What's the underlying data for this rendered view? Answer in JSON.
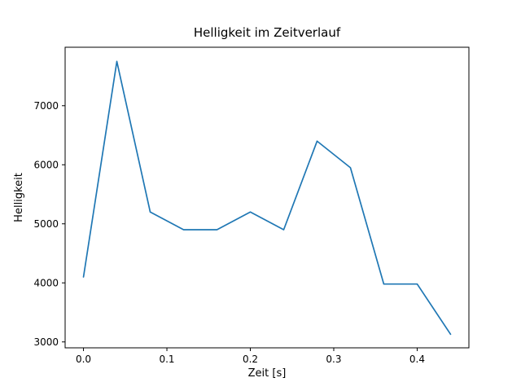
{
  "figure": {
    "background": "#ffffff"
  },
  "chart_data": {
    "type": "line",
    "title": "Helligkeit im Zeitverlauf",
    "xlabel": "Zeit [s]",
    "ylabel": "Helligkeit",
    "x": [
      0.0,
      0.04,
      0.08,
      0.12,
      0.16,
      0.2,
      0.24,
      0.28,
      0.32,
      0.36,
      0.4,
      0.44
    ],
    "y": [
      4100,
      7750,
      5200,
      4900,
      4900,
      5200,
      4900,
      6400,
      5950,
      3980,
      3980,
      3130
    ],
    "xlim": [
      -0.022,
      0.462
    ],
    "ylim": [
      2900,
      7990
    ],
    "xticks": [
      0.0,
      0.1,
      0.2,
      0.3,
      0.4
    ],
    "xtick_labels": [
      "0.0",
      "0.1",
      "0.2",
      "0.3",
      "0.4"
    ],
    "yticks": [
      3000,
      4000,
      5000,
      6000,
      7000
    ],
    "ytick_labels": [
      "3000",
      "4000",
      "5000",
      "6000",
      "7000"
    ],
    "line_color": "#1f77b4",
    "axis_color": "#000000",
    "grid": false,
    "legend_position": "none"
  }
}
